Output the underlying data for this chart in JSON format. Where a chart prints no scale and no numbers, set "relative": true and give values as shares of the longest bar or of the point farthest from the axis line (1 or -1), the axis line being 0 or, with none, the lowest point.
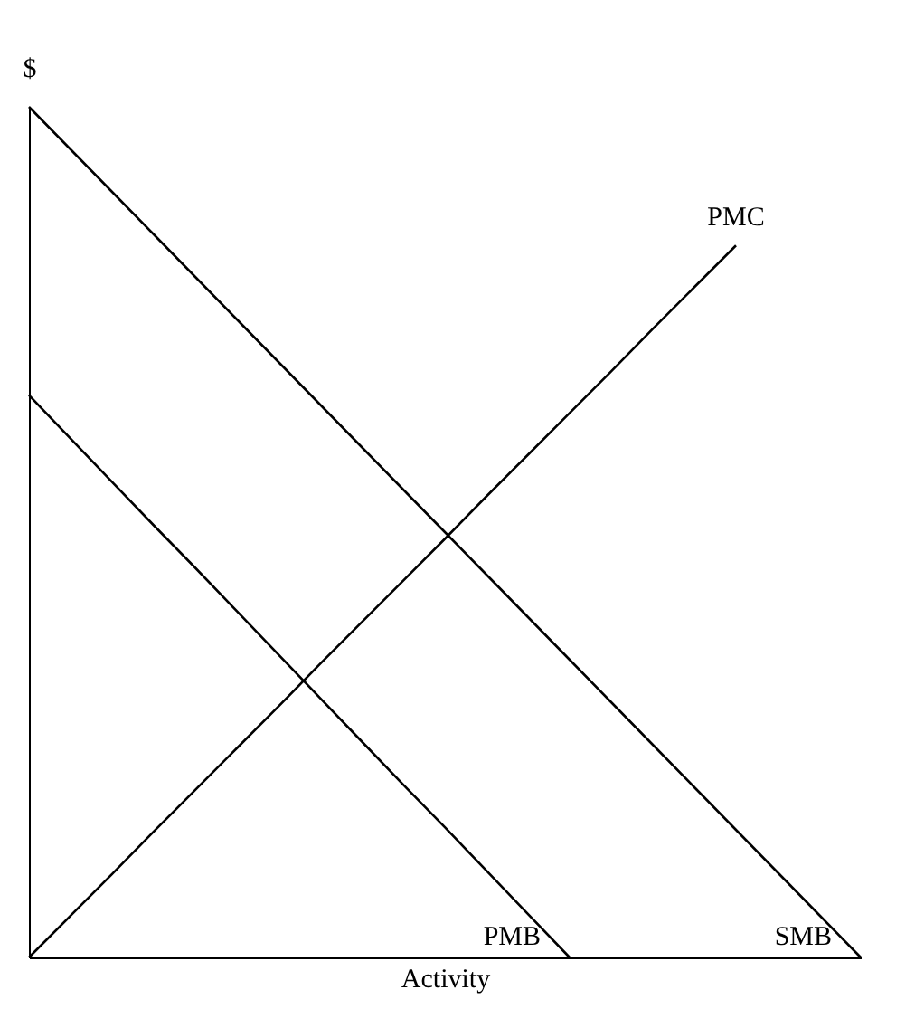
{
  "chart_data": {
    "type": "line",
    "relative": true,
    "xlabel": "Activity",
    "ylabel": "$",
    "grid": false,
    "marker": "none",
    "line_style": "solid",
    "categories": [
      null,
      null,
      null,
      null,
      null,
      null,
      null,
      null,
      null,
      null,
      null,
      null,
      null,
      null,
      null,
      null,
      null,
      null,
      null,
      null,
      null
    ],
    "series": [
      {
        "name": "SMB",
        "color": "#000000",
        "values": [
          1,
          0.95,
          0.9,
          0.85,
          0.8,
          0.75,
          0.7,
          0.65,
          0.6,
          0.55,
          0.5,
          0.45,
          0.4,
          0.35,
          0.3,
          0.25,
          0.2,
          0.15,
          0.1,
          0.05,
          0
        ]
      },
      {
        "name": "PMB",
        "color": "#000000",
        "values": [
          0.661,
          0.61,
          0.559,
          0.508,
          0.458,
          0.407,
          0.356,
          0.305,
          0.254,
          0.203,
          0.153,
          0.102,
          0.051,
          0,
          null,
          null,
          null,
          null,
          null,
          null,
          null
        ]
      },
      {
        "name": "PMC",
        "color": "#000000",
        "values": [
          0,
          0.049,
          0.098,
          0.148,
          0.197,
          0.246,
          0.295,
          0.345,
          0.394,
          0.443,
          0.492,
          0.542,
          0.591,
          0.64,
          0.689,
          0.739,
          0.788,
          0.837,
          null,
          null,
          null
        ]
      }
    ]
  }
}
